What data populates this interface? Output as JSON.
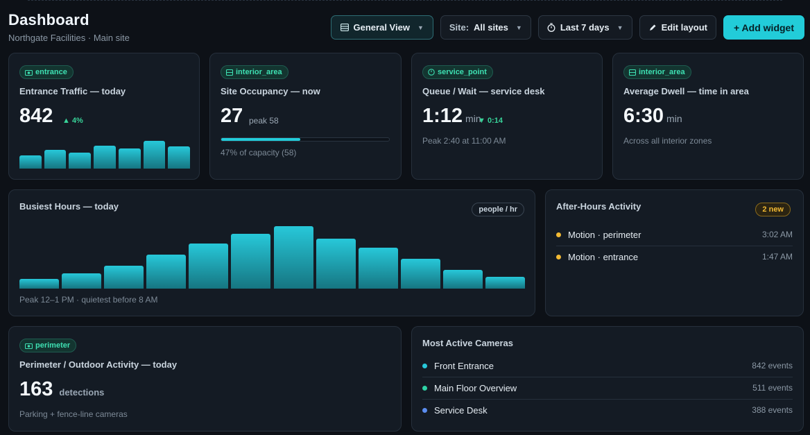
{
  "header": {
    "title": "Dashboard",
    "subtitle": "Northgate Facilities · Main site"
  },
  "toolbar": {
    "view_label": "General View",
    "site_prefix": "Site:",
    "site_value": "All sites",
    "range_label": "Last 7 days",
    "edit_label": "Edit layout",
    "add_label": "+ Add widget"
  },
  "cards": {
    "entrance": {
      "chip": "entrance",
      "title": "Entrance Traffic — today",
      "value": "842",
      "delta": "▲ 4%",
      "sparkline": [
        0.45,
        0.65,
        0.55,
        0.78,
        0.7,
        0.95,
        0.77
      ]
    },
    "occupancy": {
      "chip": "interior_area",
      "title": "Site Occupancy — now",
      "value": "27",
      "peak": "peak 58",
      "capacity_fraction": 0.47,
      "note": "47% of capacity (58)"
    },
    "queue": {
      "chip": "service_point",
      "title": "Queue / Wait — service desk",
      "value": "1:12",
      "unit": "min",
      "delta": "▼ 0:14",
      "note": "Peak 2:40 at 11:00 AM"
    },
    "dwell": {
      "chip": "interior_area",
      "title": "Average Dwell — time in area",
      "value": "6:30",
      "unit": "min",
      "note": "Across all interior zones"
    },
    "busiest": {
      "title": "Busiest Hours — today",
      "tag": "people / hr",
      "note": "Peak 12–1 PM · quietest before 8 AM"
    },
    "after_hours": {
      "title": "After-Hours Activity",
      "tag": "2 new",
      "accent": "#f2b933",
      "items": [
        {
          "label": "Motion · perimeter",
          "time": "3:02 AM"
        },
        {
          "label": "Motion · entrance",
          "time": "1:47 AM"
        }
      ]
    },
    "perimeter": {
      "chip": "perimeter",
      "title": "Perimeter / Outdoor Activity — today",
      "value": "163",
      "unit": "detections",
      "note": "Parking + fence-line cameras"
    },
    "cameras": {
      "title": "Most Active Cameras",
      "items": [
        {
          "label": "Front Entrance",
          "count": "842 events",
          "color": "#27c8d9"
        },
        {
          "label": "Main Floor Overview",
          "count": "511 events",
          "color": "#2ed3a6"
        },
        {
          "label": "Service Desk",
          "count": "388 events",
          "color": "#5b8def"
        }
      ]
    }
  },
  "chart_data": {
    "type": "bar",
    "title": "Busiest Hours — today",
    "ylabel": "people / hr",
    "values": [
      0.16,
      0.24,
      0.37,
      0.54,
      0.72,
      0.88,
      1.0,
      0.8,
      0.65,
      0.48,
      0.3,
      0.19
    ]
  }
}
